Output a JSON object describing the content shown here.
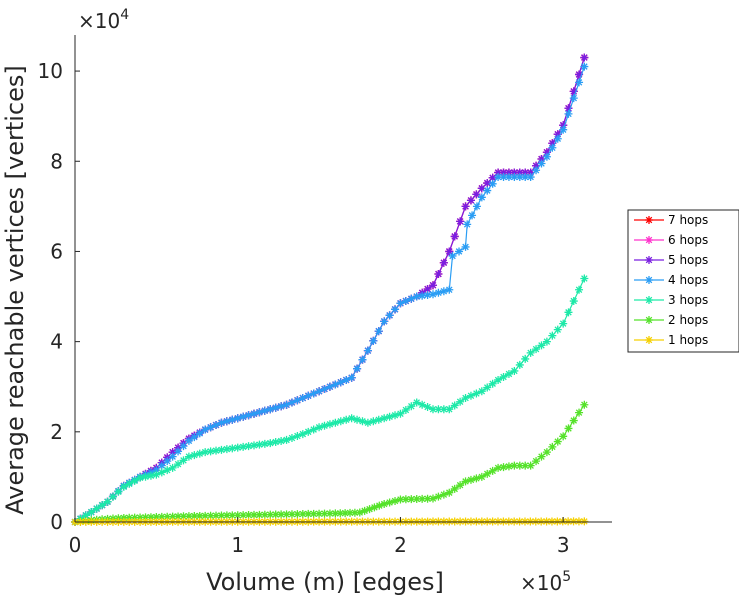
{
  "chart_data": {
    "type": "line",
    "title": "",
    "xlabel": "Volume (m) [edges]",
    "ylabel": "Average reachable vertices [vertices]",
    "x_exponent_label": "×10^5",
    "y_exponent_label": "×10^4",
    "x_multiplier": 100000,
    "y_multiplier": 10000,
    "xlim": [
      0,
      330000
    ],
    "ylim": [
      0,
      108000
    ],
    "xticks": [
      0,
      100000,
      200000,
      300000
    ],
    "xtick_labels": [
      "0",
      "1",
      "2",
      "3"
    ],
    "yticks": [
      0,
      20000,
      40000,
      60000,
      80000,
      100000
    ],
    "ytick_labels": [
      "0",
      "2",
      "4",
      "6",
      "8",
      "10"
    ],
    "grid": false,
    "legend_position": "right",
    "series": [
      {
        "name": "7 hops",
        "color": "#ff0000",
        "points": [
          [
            0,
            0
          ],
          [
            10000,
            2200
          ],
          [
            20000,
            4500
          ],
          [
            30000,
            8000
          ],
          [
            40000,
            10000
          ],
          [
            50000,
            12000
          ],
          [
            60000,
            15500
          ],
          [
            70000,
            18500
          ],
          [
            80000,
            20500
          ],
          [
            90000,
            22000
          ],
          [
            100000,
            23000
          ],
          [
            110000,
            24000
          ],
          [
            120000,
            25000
          ],
          [
            130000,
            26000
          ],
          [
            140000,
            27500
          ],
          [
            150000,
            29000
          ],
          [
            160000,
            30500
          ],
          [
            170000,
            32000
          ],
          [
            180000,
            38000
          ],
          [
            190000,
            44500
          ],
          [
            200000,
            48500
          ],
          [
            210000,
            50000
          ],
          [
            220000,
            52500
          ],
          [
            230000,
            60000
          ],
          [
            240000,
            70000
          ],
          [
            250000,
            74000
          ],
          [
            260000,
            77500
          ],
          [
            270000,
            77500
          ],
          [
            280000,
            77500
          ],
          [
            290000,
            82000
          ],
          [
            300000,
            88000
          ],
          [
            313000,
            103000
          ]
        ]
      },
      {
        "name": "6 hops",
        "color": "#ff33cc",
        "points": [
          [
            0,
            0
          ],
          [
            10000,
            2200
          ],
          [
            20000,
            4500
          ],
          [
            30000,
            8000
          ],
          [
            40000,
            10000
          ],
          [
            50000,
            12000
          ],
          [
            60000,
            15500
          ],
          [
            70000,
            18500
          ],
          [
            80000,
            20500
          ],
          [
            90000,
            22000
          ],
          [
            100000,
            23000
          ],
          [
            110000,
            24000
          ],
          [
            120000,
            25000
          ],
          [
            130000,
            26000
          ],
          [
            140000,
            27500
          ],
          [
            150000,
            29000
          ],
          [
            160000,
            30500
          ],
          [
            170000,
            32000
          ],
          [
            180000,
            38000
          ],
          [
            190000,
            44500
          ],
          [
            200000,
            48500
          ],
          [
            210000,
            50000
          ],
          [
            220000,
            52500
          ],
          [
            230000,
            60000
          ],
          [
            240000,
            70000
          ],
          [
            250000,
            74000
          ],
          [
            260000,
            77500
          ],
          [
            270000,
            77500
          ],
          [
            280000,
            77500
          ],
          [
            290000,
            82000
          ],
          [
            300000,
            88000
          ],
          [
            313000,
            103000
          ]
        ]
      },
      {
        "name": "5 hops",
        "color": "#7a1fe0",
        "points": [
          [
            0,
            0
          ],
          [
            10000,
            2200
          ],
          [
            20000,
            4500
          ],
          [
            30000,
            8000
          ],
          [
            40000,
            10000
          ],
          [
            50000,
            12000
          ],
          [
            60000,
            15500
          ],
          [
            70000,
            18500
          ],
          [
            80000,
            20500
          ],
          [
            90000,
            22000
          ],
          [
            100000,
            23000
          ],
          [
            110000,
            24000
          ],
          [
            120000,
            25000
          ],
          [
            130000,
            26000
          ],
          [
            140000,
            27500
          ],
          [
            150000,
            29000
          ],
          [
            160000,
            30500
          ],
          [
            170000,
            32000
          ],
          [
            180000,
            38000
          ],
          [
            190000,
            44500
          ],
          [
            200000,
            48500
          ],
          [
            210000,
            50000
          ],
          [
            220000,
            52500
          ],
          [
            230000,
            60000
          ],
          [
            240000,
            70000
          ],
          [
            250000,
            74000
          ],
          [
            260000,
            77500
          ],
          [
            270000,
            77500
          ],
          [
            280000,
            77500
          ],
          [
            290000,
            82000
          ],
          [
            300000,
            88000
          ],
          [
            313000,
            103000
          ]
        ]
      },
      {
        "name": "4 hops",
        "color": "#2a9df4",
        "points": [
          [
            0,
            0
          ],
          [
            10000,
            2200
          ],
          [
            20000,
            4500
          ],
          [
            30000,
            8000
          ],
          [
            40000,
            10000
          ],
          [
            50000,
            11500
          ],
          [
            60000,
            14500
          ],
          [
            70000,
            18000
          ],
          [
            80000,
            20500
          ],
          [
            90000,
            22000
          ],
          [
            100000,
            23000
          ],
          [
            110000,
            24000
          ],
          [
            120000,
            25000
          ],
          [
            130000,
            26000
          ],
          [
            140000,
            27500
          ],
          [
            150000,
            29000
          ],
          [
            160000,
            30500
          ],
          [
            170000,
            32000
          ],
          [
            180000,
            38000
          ],
          [
            190000,
            44500
          ],
          [
            200000,
            48500
          ],
          [
            210000,
            50000
          ],
          [
            220000,
            50500
          ],
          [
            230000,
            51500
          ],
          [
            232000,
            59000
          ],
          [
            240000,
            61000
          ],
          [
            241000,
            66000
          ],
          [
            250000,
            72000
          ],
          [
            260000,
            76500
          ],
          [
            270000,
            76500
          ],
          [
            280000,
            76500
          ],
          [
            290000,
            81000
          ],
          [
            300000,
            87000
          ],
          [
            313000,
            101000
          ]
        ]
      },
      {
        "name": "3 hops",
        "color": "#1de9a8",
        "points": [
          [
            0,
            0
          ],
          [
            10000,
            2200
          ],
          [
            20000,
            4500
          ],
          [
            30000,
            7800
          ],
          [
            40000,
            9800
          ],
          [
            50000,
            10500
          ],
          [
            60000,
            12000
          ],
          [
            70000,
            14500
          ],
          [
            80000,
            15500
          ],
          [
            90000,
            16000
          ],
          [
            100000,
            16500
          ],
          [
            110000,
            17000
          ],
          [
            120000,
            17500
          ],
          [
            130000,
            18200
          ],
          [
            140000,
            19500
          ],
          [
            150000,
            21000
          ],
          [
            160000,
            22000
          ],
          [
            170000,
            23000
          ],
          [
            180000,
            22000
          ],
          [
            190000,
            23000
          ],
          [
            200000,
            24000
          ],
          [
            210000,
            26500
          ],
          [
            220000,
            25000
          ],
          [
            230000,
            25000
          ],
          [
            240000,
            27500
          ],
          [
            250000,
            29000
          ],
          [
            260000,
            31500
          ],
          [
            270000,
            33500
          ],
          [
            280000,
            37500
          ],
          [
            290000,
            40000
          ],
          [
            300000,
            44000
          ],
          [
            313000,
            54000
          ]
        ]
      },
      {
        "name": "2 hops",
        "color": "#55e22a",
        "points": [
          [
            0,
            0
          ],
          [
            10000,
            400
          ],
          [
            20000,
            700
          ],
          [
            30000,
            900
          ],
          [
            50000,
            1100
          ],
          [
            70000,
            1300
          ],
          [
            100000,
            1500
          ],
          [
            130000,
            1700
          ],
          [
            160000,
            1900
          ],
          [
            175000,
            2100
          ],
          [
            190000,
            4000
          ],
          [
            200000,
            5000
          ],
          [
            220000,
            5200
          ],
          [
            230000,
            6500
          ],
          [
            240000,
            9000
          ],
          [
            250000,
            10000
          ],
          [
            260000,
            12000
          ],
          [
            270000,
            12500
          ],
          [
            280000,
            12500
          ],
          [
            290000,
            15500
          ],
          [
            300000,
            19000
          ],
          [
            313000,
            26000
          ]
        ]
      },
      {
        "name": "1 hops",
        "color": "#f5d000",
        "points": [
          [
            0,
            0
          ],
          [
            10000,
            30
          ],
          [
            50000,
            40
          ],
          [
            100000,
            60
          ],
          [
            150000,
            70
          ],
          [
            200000,
            90
          ],
          [
            250000,
            110
          ],
          [
            313000,
            130
          ]
        ]
      }
    ]
  }
}
